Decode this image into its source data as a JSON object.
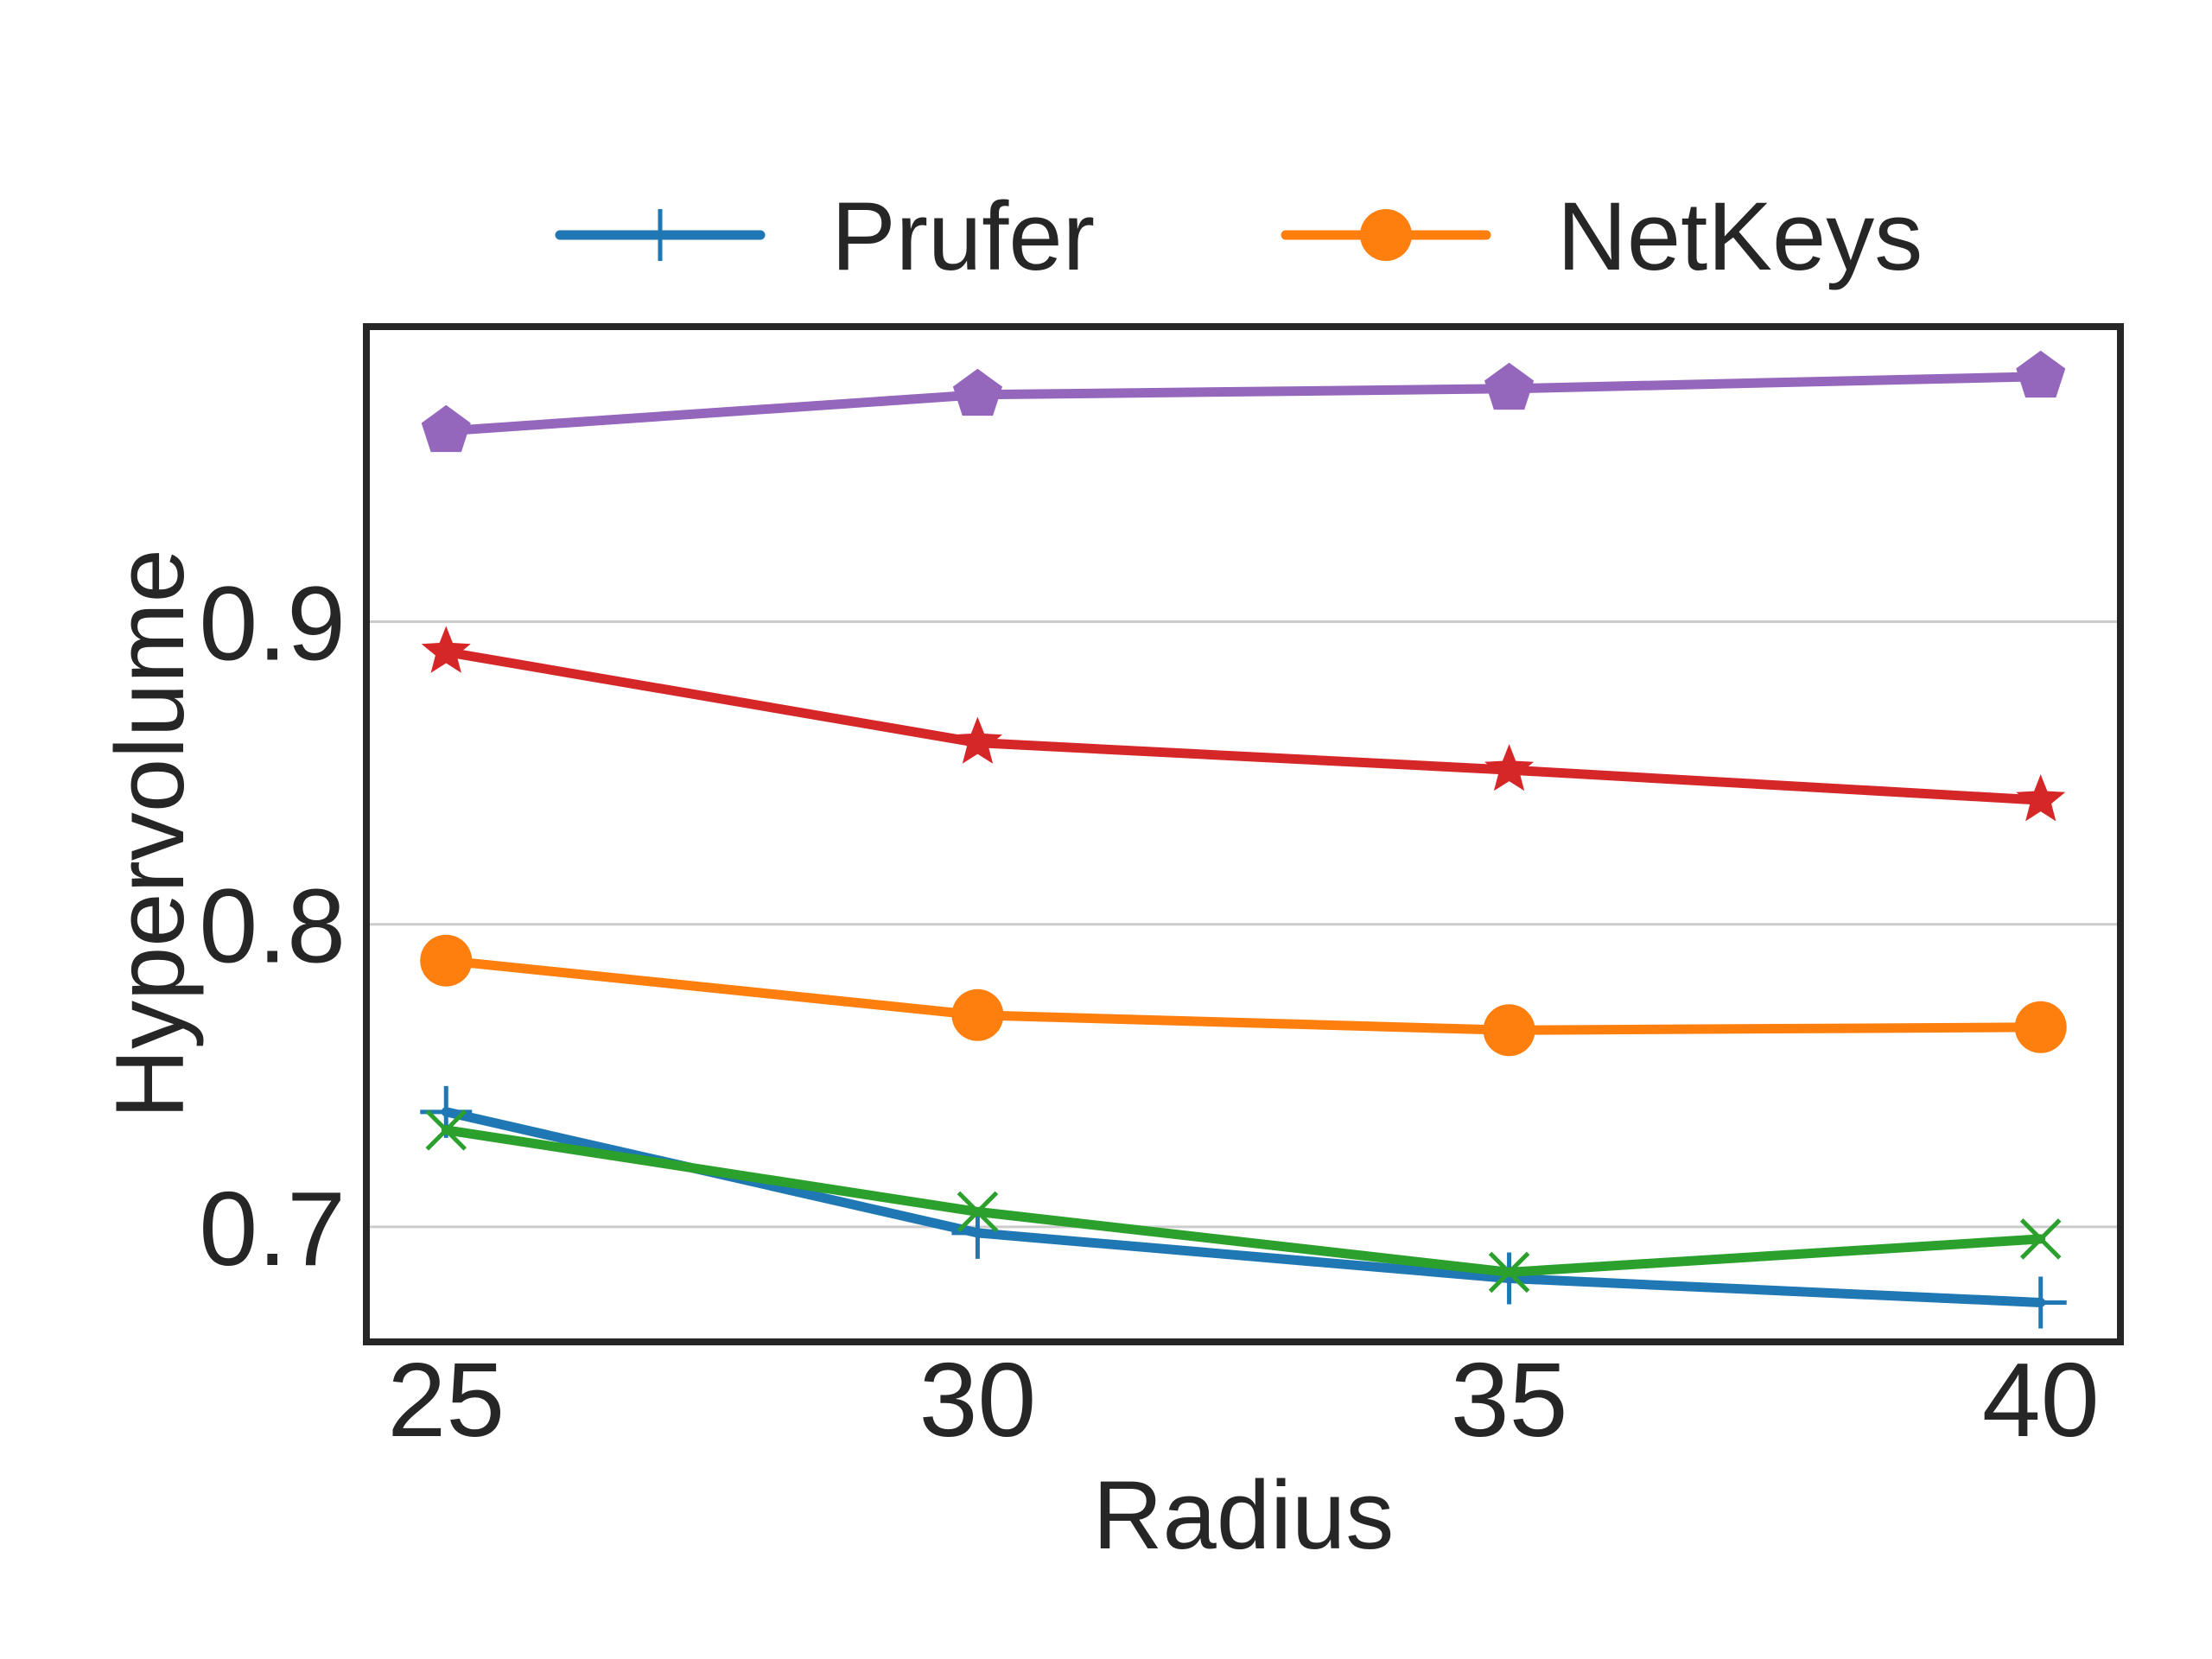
{
  "chart_data": {
    "type": "line",
    "title": "",
    "xlabel": "Radius",
    "ylabel": "Hypervolume",
    "x": [
      25,
      30,
      35,
      40
    ],
    "xlim": [
      24.25,
      40.75
    ],
    "ylim": [
      0.662,
      0.9975
    ],
    "yticks": [
      0.7,
      0.8,
      0.9
    ],
    "ytick_labels": [
      "0.7",
      "0.8",
      "0.9"
    ],
    "xticks": [
      25,
      30,
      35,
      40
    ],
    "xtick_labels": [
      "25",
      "30",
      "35",
      "40"
    ],
    "grid": "horizontal",
    "legend": {
      "placement": "top, above plot",
      "columns": 2
    },
    "series": [
      {
        "name": "Prufer",
        "color": "#1f77b4",
        "marker": "plus",
        "in_legend": true,
        "values": [
          0.738,
          0.698,
          0.683,
          0.675
        ]
      },
      {
        "name": "NetKeys",
        "color": "#ff7f0e",
        "marker": "circle",
        "in_legend": true,
        "values": [
          0.788,
          0.77,
          0.765,
          0.766
        ]
      },
      {
        "color": "#2ca02c",
        "marker": "x",
        "in_legend": false,
        "values": [
          0.732,
          0.705,
          0.685,
          0.696
        ]
      },
      {
        "color": "#d62728",
        "marker": "star",
        "in_legend": false,
        "values": [
          0.89,
          0.86,
          0.851,
          0.841
        ]
      },
      {
        "color": "#9467bd",
        "marker": "pentagon",
        "in_legend": false,
        "values": [
          0.963,
          0.975,
          0.977,
          0.981
        ]
      }
    ]
  }
}
